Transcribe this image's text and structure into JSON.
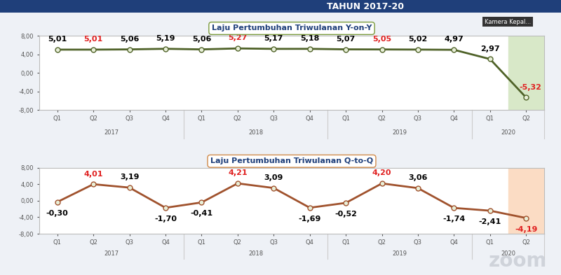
{
  "header": {
    "title": "TAHUN 2017-20",
    "camera_label": "Kamera Kepal...",
    "watermark": "zoom"
  },
  "chart_data": [
    {
      "type": "line",
      "title": "Laju Pertumbuhan Triwulanan Y-on-Y",
      "categories": [
        "Q1",
        "Q2",
        "Q3",
        "Q4",
        "Q1",
        "Q2",
        "Q3",
        "Q4",
        "Q1",
        "Q2",
        "Q3",
        "Q4",
        "Q1",
        "Q2"
      ],
      "groups": [
        {
          "label": "2017",
          "count": 4
        },
        {
          "label": "2018",
          "count": 4
        },
        {
          "label": "2019",
          "count": 4
        },
        {
          "label": "2020",
          "count": 2
        }
      ],
      "values": [
        5.01,
        5.01,
        5.06,
        5.19,
        5.06,
        5.27,
        5.17,
        5.18,
        5.07,
        5.05,
        5.02,
        4.97,
        2.97,
        -5.32
      ],
      "value_labels": [
        "5,01",
        "5,01",
        "5,06",
        "5,19",
        "5,06",
        "5,27",
        "5,17",
        "5,18",
        "5,07",
        "5,05",
        "5,02",
        "4,97",
        "2,97",
        "-5,32"
      ],
      "color": "#4f6228",
      "marker": "circle",
      "data_labels": true,
      "grid": false,
      "ylim": [
        -8,
        8
      ],
      "yticks": [
        {
          "value": -8,
          "label": "-8,00"
        },
        {
          "value": -4,
          "label": "-4,00"
        },
        {
          "value": 0,
          "label": "0,00"
        },
        {
          "value": 4,
          "label": "4,00"
        },
        {
          "value": 8,
          "label": "8,00"
        }
      ]
    },
    {
      "type": "line",
      "title": "Laju Pertumbuhan Triwulanan Q-to-Q",
      "categories": [
        "Q1",
        "Q2",
        "Q3",
        "Q4",
        "Q1",
        "Q2",
        "Q3",
        "Q4",
        "Q1",
        "Q2",
        "Q3",
        "Q4",
        "Q1",
        "Q2"
      ],
      "groups": [
        {
          "label": "2017",
          "count": 4
        },
        {
          "label": "2018",
          "count": 4
        },
        {
          "label": "2019",
          "count": 4
        },
        {
          "label": "2020",
          "count": 2
        }
      ],
      "values": [
        -0.3,
        4.01,
        3.19,
        -1.7,
        -0.41,
        4.21,
        3.09,
        -1.69,
        -0.52,
        4.2,
        3.06,
        -1.74,
        -2.41,
        -4.19
      ],
      "value_labels": [
        "-0,30",
        "4,01",
        "3,19",
        "-1,70",
        "-0,41",
        "4,21",
        "3,09",
        "-1,69",
        "-0,52",
        "4,20",
        "3,06",
        "-1,74",
        "-2,41",
        "-4,19"
      ],
      "color": "#a0522d",
      "marker": "circle",
      "data_labels": true,
      "grid": false,
      "ylim": [
        -8,
        8
      ],
      "yticks": [
        {
          "value": -8,
          "label": "-8,00"
        },
        {
          "value": -4,
          "label": "-4,00"
        },
        {
          "value": 0,
          "label": "0,00"
        },
        {
          "value": 4,
          "label": "4,00"
        },
        {
          "value": 8,
          "label": "8,00"
        }
      ]
    }
  ]
}
